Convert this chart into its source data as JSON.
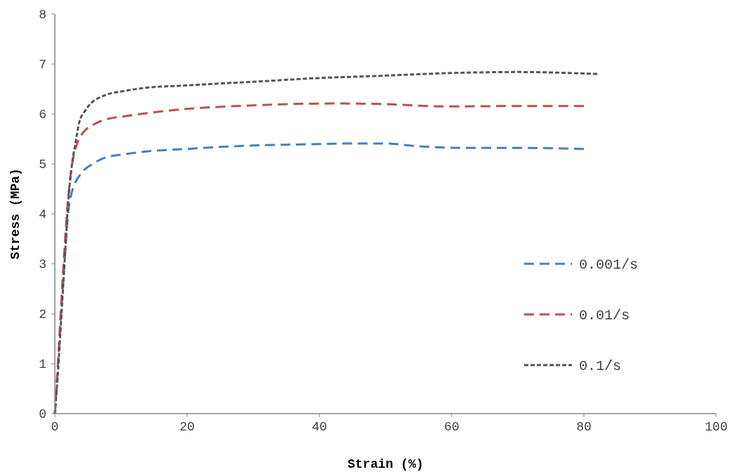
{
  "chart_data": {
    "type": "line",
    "xlabel": "Strain (%)",
    "ylabel": "Stress (MPa)",
    "xlim": [
      0,
      100
    ],
    "xticks": [
      0,
      20,
      40,
      60,
      80,
      100
    ],
    "ylim": [
      0,
      8
    ],
    "yticks": [
      0,
      1,
      2,
      3,
      4,
      5,
      6,
      7,
      8
    ],
    "grid": false,
    "legend": "right",
    "marker": "none",
    "series": [
      {
        "name": "0.001/s",
        "color": "#4a7ebb",
        "line_style": "dashed",
        "x": [
          0,
          0.5,
          1,
          1.5,
          2,
          2.5,
          3,
          3.7,
          4.6,
          5.5,
          7.3,
          10.9,
          13.9,
          20,
          30,
          37.4,
          46.2,
          50,
          54.3,
          62.3,
          70,
          80
        ],
        "values": [
          0,
          1,
          2.1,
          3.1,
          4,
          4.4,
          4.6,
          4.76,
          4.9,
          4.98,
          5.11,
          5.2,
          5.25,
          5.3,
          5.37,
          5.39,
          5.41,
          5.41,
          5.36,
          5.32,
          5.32,
          5.3
        ]
      },
      {
        "name": "0.01/s",
        "color": "#c0504d",
        "line_style": "dashed",
        "x": [
          0,
          0.5,
          1,
          1.5,
          2,
          2.5,
          3,
          3.4,
          4,
          4.8,
          6,
          7.7,
          10.9,
          13,
          19,
          29.6,
          42.4,
          49,
          59.5,
          70,
          80
        ],
        "values": [
          0,
          1.1,
          2.3,
          3.4,
          4.3,
          4.9,
          5.25,
          5.42,
          5.58,
          5.7,
          5.8,
          5.89,
          5.96,
          6,
          6.09,
          6.17,
          6.21,
          6.2,
          6.15,
          6.16,
          6.16
        ]
      },
      {
        "name": "0.1/s",
        "color": "#555555",
        "line_style": "dotted",
        "x": [
          0,
          0.5,
          1,
          1.5,
          2,
          2.5,
          3.05,
          3.7,
          4.5,
          5.5,
          7.3,
          10.5,
          13.5,
          19.7,
          32,
          40,
          48.6,
          60,
          70,
          82
        ],
        "values": [
          0,
          0.9,
          2,
          3.1,
          4.2,
          4.9,
          5.37,
          5.84,
          6.05,
          6.22,
          6.36,
          6.46,
          6.52,
          6.57,
          6.66,
          6.72,
          6.76,
          6.82,
          6.84,
          6.8
        ]
      }
    ]
  }
}
